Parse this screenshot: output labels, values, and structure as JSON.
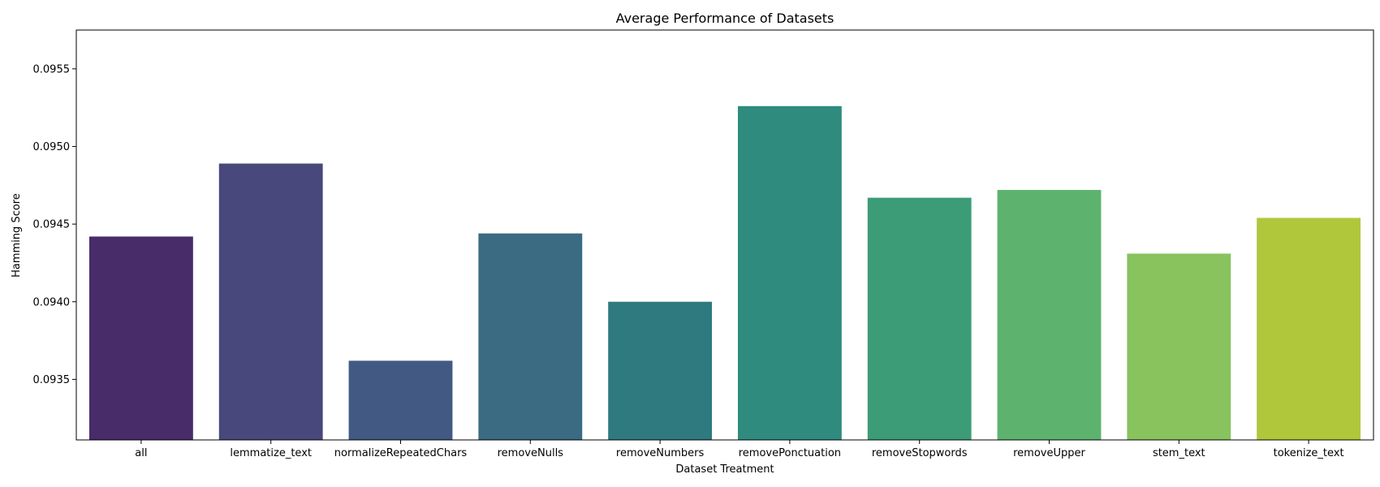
{
  "chart_data": {
    "type": "bar",
    "title": "Average Performance of Datasets",
    "xlabel": "Dataset Treatment",
    "ylabel": "Hamming Score",
    "categories": [
      "all",
      "lemmatize_text",
      "normalizeRepeatedChars",
      "removeNulls",
      "removeNumbers",
      "removePonctuation",
      "removeStopwords",
      "removeUpper",
      "stem_text",
      "tokenize_text"
    ],
    "values": [
      0.09442,
      0.09489,
      0.09362,
      0.09444,
      0.094,
      0.09526,
      0.09467,
      0.09472,
      0.09431,
      0.09454
    ],
    "colors": [
      "#482b69",
      "#48487c",
      "#425a83",
      "#3a6b82",
      "#2f7a7f",
      "#2e8b7e",
      "#3c9c78",
      "#5db36e",
      "#88c35e",
      "#b0c73c"
    ],
    "ylim": [
      0.09311,
      0.09575
    ],
    "yticks": [
      0.0935,
      0.094,
      0.0945,
      0.095,
      0.0955
    ],
    "ytick_labels": [
      "0.0935",
      "0.0940",
      "0.0945",
      "0.0950",
      "0.0955"
    ],
    "grid": false,
    "legend": "none"
  }
}
